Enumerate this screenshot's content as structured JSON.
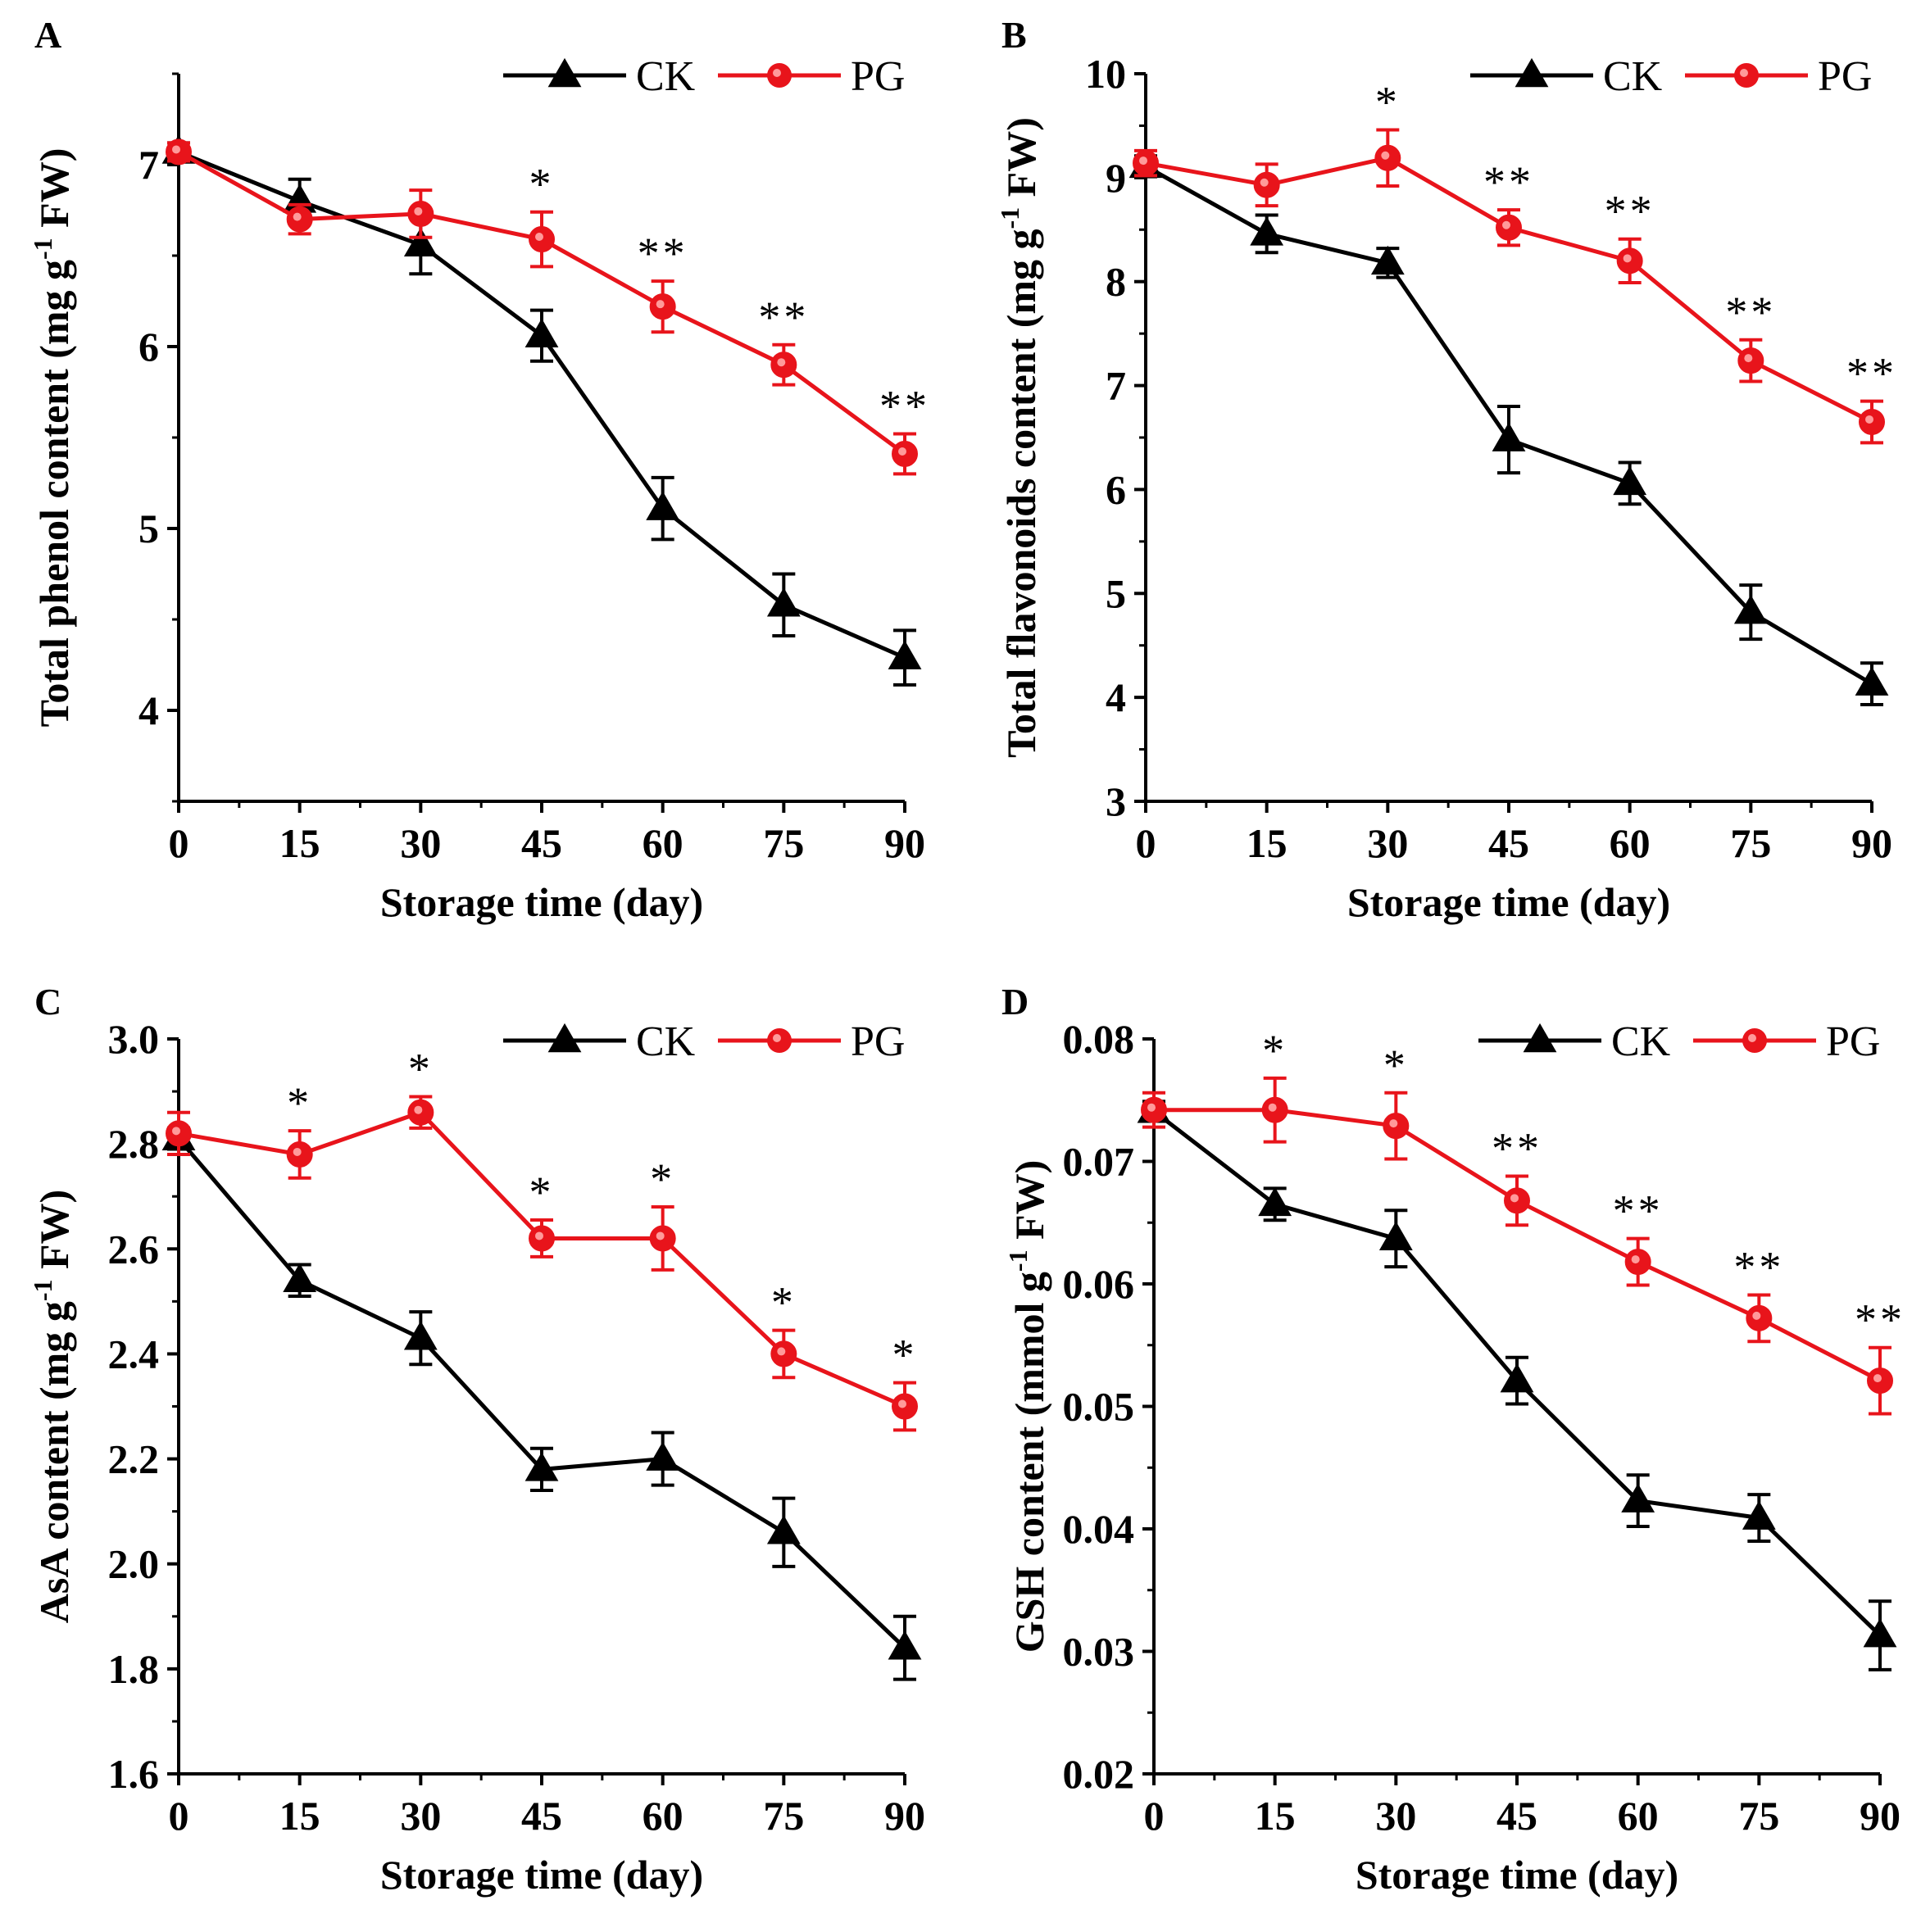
{
  "figure": {
    "colors": {
      "ck": "#000000",
      "pg": "#e8141b",
      "axis": "#000000"
    }
  },
  "chart_data": [
    {
      "type": "line",
      "panel": "A",
      "xlabel": "Storage time (day)",
      "ylabel_main": "Total phenol content (mg g",
      "ylabel_sup": "-1",
      "ylabel_tail": " FW)",
      "x": [
        0,
        15,
        30,
        45,
        60,
        75,
        90
      ],
      "xticks": [
        "0",
        "15",
        "30",
        "45",
        "60",
        "75",
        "90"
      ],
      "xlim": [
        0,
        90
      ],
      "ylim": [
        3.5,
        7.5
      ],
      "yticks": [
        4,
        5,
        6,
        7
      ],
      "ytick_labels": [
        "4",
        "5",
        "6",
        "7"
      ],
      "legend": [
        "CK",
        "PG"
      ],
      "legend_position": "top-right",
      "series": [
        {
          "name": "CK",
          "marker": "triangle",
          "values": [
            7.07,
            6.8,
            6.56,
            6.06,
            5.11,
            4.58,
            4.29
          ],
          "errors": [
            0.05,
            0.12,
            0.16,
            0.14,
            0.17,
            0.17,
            0.15
          ]
        },
        {
          "name": "PG",
          "marker": "circle",
          "values": [
            7.07,
            6.7,
            6.73,
            6.59,
            6.22,
            5.9,
            5.41
          ],
          "errors": [
            0.05,
            0.08,
            0.13,
            0.15,
            0.14,
            0.11,
            0.11
          ]
        }
      ],
      "significance": [
        {
          "x": 45,
          "label": "*"
        },
        {
          "x": 60,
          "label": "**"
        },
        {
          "x": 75,
          "label": "**"
        },
        {
          "x": 90,
          "label": "**"
        }
      ]
    },
    {
      "type": "line",
      "panel": "B",
      "xlabel": "Storage time (day)",
      "ylabel_main": "Total flavonoids content (mg g",
      "ylabel_sup": "-1",
      "ylabel_tail": " FW)",
      "x": [
        0,
        15,
        30,
        45,
        60,
        75,
        90
      ],
      "xticks": [
        "0",
        "15",
        "30",
        "45",
        "60",
        "75",
        "90"
      ],
      "xlim": [
        0,
        90
      ],
      "ylim": [
        3,
        10
      ],
      "yticks": [
        3,
        4,
        5,
        6,
        7,
        8,
        9,
        10
      ],
      "ytick_labels": [
        "3",
        "4",
        "5",
        "6",
        "7",
        "8",
        "9",
        "10"
      ],
      "legend": [
        "CK",
        "PG"
      ],
      "legend_position": "top-right",
      "series": [
        {
          "name": "CK",
          "marker": "triangle",
          "values": [
            9.11,
            8.46,
            8.18,
            6.48,
            6.06,
            4.82,
            4.13
          ],
          "errors": [
            0.1,
            0.18,
            0.14,
            0.32,
            0.2,
            0.26,
            0.2
          ]
        },
        {
          "name": "PG",
          "marker": "circle",
          "values": [
            9.14,
            8.93,
            9.19,
            8.52,
            8.2,
            7.24,
            6.65
          ],
          "errors": [
            0.12,
            0.2,
            0.27,
            0.17,
            0.21,
            0.2,
            0.2
          ]
        }
      ],
      "significance": [
        {
          "x": 30,
          "label": "*"
        },
        {
          "x": 45,
          "label": "**"
        },
        {
          "x": 60,
          "label": "**"
        },
        {
          "x": 75,
          "label": "**"
        },
        {
          "x": 90,
          "label": "**"
        }
      ]
    },
    {
      "type": "line",
      "panel": "C",
      "xlabel": "Storage time (day)",
      "ylabel_main": "AsA content (mg g",
      "ylabel_sup": "-1",
      "ylabel_tail": " FW)",
      "x": [
        0,
        15,
        30,
        45,
        60,
        75,
        90
      ],
      "xticks": [
        "0",
        "15",
        "30",
        "45",
        "60",
        "75",
        "90"
      ],
      "xlim": [
        0,
        90
      ],
      "ylim": [
        1.6,
        3.0
      ],
      "yticks": [
        1.6,
        1.8,
        2.0,
        2.2,
        2.4,
        2.6,
        2.8,
        3.0
      ],
      "ytick_labels": [
        "1.6",
        "1.8",
        "2.0",
        "2.2",
        "2.4",
        "2.6",
        "2.8",
        "3.0"
      ],
      "legend": [
        "CK",
        "PG"
      ],
      "legend_position": "top-right",
      "series": [
        {
          "name": "CK",
          "marker": "triangle",
          "values": [
            2.81,
            2.54,
            2.43,
            2.18,
            2.2,
            2.06,
            1.84
          ],
          "errors": [
            0.02,
            0.03,
            0.05,
            0.04,
            0.05,
            0.065,
            0.06
          ]
        },
        {
          "name": "PG",
          "marker": "circle",
          "values": [
            2.82,
            2.78,
            2.86,
            2.62,
            2.62,
            2.4,
            2.3
          ],
          "errors": [
            0.04,
            0.045,
            0.03,
            0.035,
            0.06,
            0.045,
            0.045
          ]
        }
      ],
      "significance": [
        {
          "x": 15,
          "label": "*"
        },
        {
          "x": 30,
          "label": "*"
        },
        {
          "x": 45,
          "label": "*"
        },
        {
          "x": 60,
          "label": "*"
        },
        {
          "x": 75,
          "label": "*"
        },
        {
          "x": 90,
          "label": "*"
        }
      ]
    },
    {
      "type": "line",
      "panel": "D",
      "xlabel": "Storage time (day)",
      "ylabel_main": "GSH content (mmol g",
      "ylabel_sup": "-1",
      "ylabel_tail": " FW)",
      "x": [
        0,
        15,
        30,
        45,
        60,
        75,
        90
      ],
      "xticks": [
        "0",
        "15",
        "30",
        "45",
        "60",
        "75",
        "90"
      ],
      "xlim": [
        0,
        90
      ],
      "ylim": [
        0.02,
        0.08
      ],
      "yticks": [
        0.02,
        0.03,
        0.04,
        0.05,
        0.06,
        0.07,
        0.08
      ],
      "ytick_labels": [
        "0.02",
        "0.03",
        "0.04",
        "0.05",
        "0.06",
        "0.07",
        "0.08"
      ],
      "legend": [
        "CK",
        "PG"
      ],
      "legend_position": "top-right",
      "series": [
        {
          "name": "CK",
          "marker": "triangle",
          "values": [
            0.0741,
            0.0665,
            0.0637,
            0.0521,
            0.0423,
            0.0409,
            0.0313
          ],
          "errors": [
            0.0008,
            0.0013,
            0.0023,
            0.0019,
            0.0021,
            0.0019,
            0.0028
          ]
        },
        {
          "name": "PG",
          "marker": "circle",
          "values": [
            0.0742,
            0.0742,
            0.0729,
            0.0668,
            0.0618,
            0.0572,
            0.0521
          ],
          "errors": [
            0.0014,
            0.0026,
            0.0027,
            0.002,
            0.0019,
            0.0019,
            0.0027
          ]
        }
      ],
      "significance": [
        {
          "x": 15,
          "label": "*"
        },
        {
          "x": 30,
          "label": "*"
        },
        {
          "x": 45,
          "label": "**"
        },
        {
          "x": 60,
          "label": "**"
        },
        {
          "x": 75,
          "label": "**"
        },
        {
          "x": 90,
          "label": "**"
        }
      ]
    }
  ]
}
